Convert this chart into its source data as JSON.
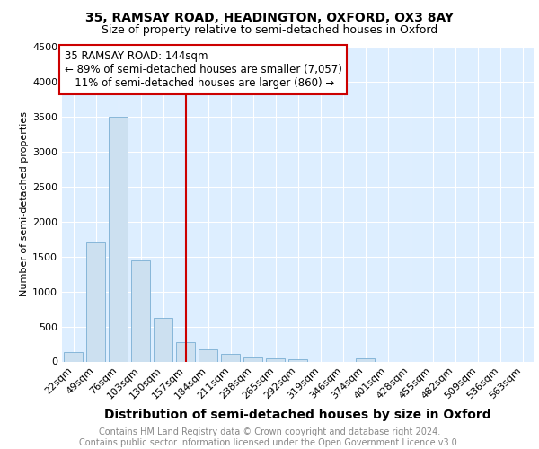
{
  "title1": "35, RAMSAY ROAD, HEADINGTON, OXFORD, OX3 8AY",
  "title2": "Size of property relative to semi-detached houses in Oxford",
  "xlabel": "Distribution of semi-detached houses by size in Oxford",
  "ylabel": "Number of semi-detached properties",
  "categories": [
    "22sqm",
    "49sqm",
    "76sqm",
    "103sqm",
    "130sqm",
    "157sqm",
    "184sqm",
    "211sqm",
    "238sqm",
    "265sqm",
    "292sqm",
    "319sqm",
    "346sqm",
    "374sqm",
    "401sqm",
    "428sqm",
    "455sqm",
    "482sqm",
    "509sqm",
    "536sqm",
    "563sqm"
  ],
  "values": [
    140,
    1700,
    3500,
    1450,
    625,
    280,
    175,
    105,
    55,
    40,
    30,
    0,
    0,
    40,
    0,
    0,
    0,
    0,
    0,
    0,
    0
  ],
  "bar_color": "#cce0f0",
  "bar_edge_color": "#7aafd4",
  "vline_color": "#cc0000",
  "vline_pos": 5,
  "annotation_text": "35 RAMSAY ROAD: 144sqm\n← 89% of semi-detached houses are smaller (7,057)\n   11% of semi-detached houses are larger (860) →",
  "annotation_box_color": "#ffffff",
  "annotation_box_edge": "#cc0000",
  "ylim": [
    0,
    4500
  ],
  "yticks": [
    0,
    500,
    1000,
    1500,
    2000,
    2500,
    3000,
    3500,
    4000,
    4500
  ],
  "footer": "Contains HM Land Registry data © Crown copyright and database right 2024.\nContains public sector information licensed under the Open Government Licence v3.0.",
  "background_color": "#ddeeff",
  "grid_color": "#ffffff",
  "title1_fontsize": 10,
  "title2_fontsize": 9,
  "xlabel_fontsize": 10,
  "ylabel_fontsize": 8,
  "tick_fontsize": 8,
  "footer_fontsize": 7
}
